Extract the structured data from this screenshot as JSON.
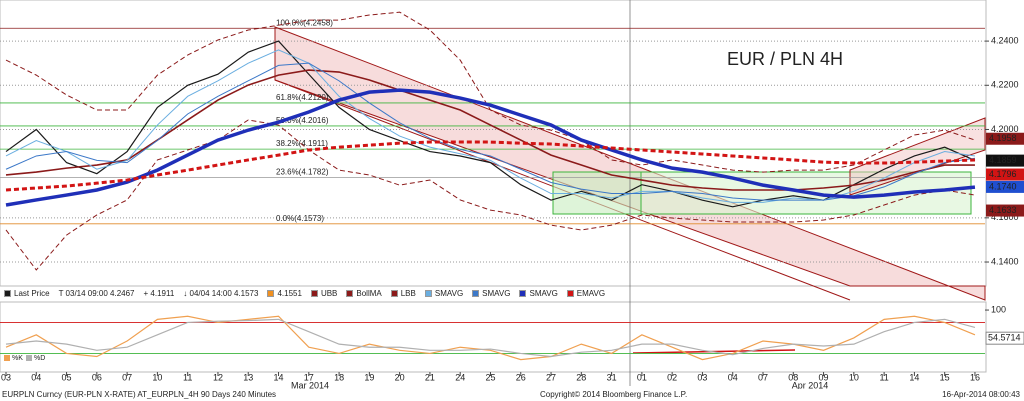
{
  "chart_data": {
    "type": "line",
    "title": "EUR / PLN 4H",
    "title_color": "#d62020",
    "categories": [
      "03",
      "04",
      "05",
      "06",
      "07",
      "10",
      "11",
      "12",
      "13",
      "14",
      "17",
      "18",
      "19",
      "20",
      "21",
      "24",
      "25",
      "26",
      "27",
      "28",
      "31",
      "01",
      "02",
      "03",
      "04",
      "07",
      "08",
      "09",
      "10",
      "11",
      "14",
      "15",
      "16"
    ],
    "periods": [
      "Mar 2014",
      "Apr 2014"
    ],
    "ylim": [
      4.1296,
      4.2586
    ],
    "yticks": [
      {
        "value": 4.14,
        "label": "4.1400"
      },
      {
        "value": 4.16,
        "label": "4.1600"
      },
      {
        "value": 4.2,
        "label": "4.2000"
      },
      {
        "value": 4.22,
        "label": "4.2200"
      },
      {
        "value": 4.24,
        "label": "4.2400"
      }
    ],
    "grid": true,
    "series": [
      {
        "name": "Last Price",
        "color": "#1a1a1a",
        "width": 1.2,
        "dash": false,
        "values": [
          4.19,
          4.2,
          4.185,
          4.18,
          4.19,
          4.21,
          4.22,
          4.225,
          4.235,
          4.24,
          4.225,
          4.21,
          4.2,
          4.195,
          4.19,
          4.188,
          4.185,
          4.175,
          4.168,
          4.172,
          4.168,
          4.175,
          4.172,
          4.168,
          4.165,
          4.168,
          4.17,
          4.168,
          4.175,
          4.182,
          4.188,
          4.192,
          4.186
        ]
      },
      {
        "name": "UBB",
        "color": "#8b1a1a",
        "width": 1,
        "dash": true,
        "values": [
          4.2314,
          4.2246,
          4.2156,
          4.2088,
          4.2088,
          4.2246,
          4.2337,
          4.2405,
          4.245,
          4.2472,
          4.2495,
          4.2495,
          4.2518,
          4.2531,
          4.245,
          4.2314,
          4.2088,
          4.202,
          4.1997,
          4.1952,
          4.1862,
          4.1839,
          4.1862,
          4.1839,
          4.1816,
          4.1807,
          4.1816,
          4.1816,
          4.1839,
          4.1907,
          4.1975,
          4.1997,
          4.1952
        ]
      },
      {
        "name": "BollMA",
        "color": "#8b1a1a",
        "width": 1.6,
        "dash": false,
        "values": [
          4.1794,
          4.1807,
          4.1825,
          4.1839,
          4.1862,
          4.1952,
          4.2043,
          4.2133,
          4.2201,
          4.2246,
          4.2269,
          4.226,
          4.2224,
          4.2178,
          4.2133,
          4.2088,
          4.202,
          4.1952,
          4.1884,
          4.1839,
          4.1794,
          4.1771,
          4.1748,
          4.1735,
          4.1726,
          4.1726,
          4.1726,
          4.1735,
          4.1748,
          4.1771,
          4.1807,
          4.1839,
          4.1839
        ]
      },
      {
        "name": "LBB",
        "color": "#8b1a1a",
        "width": 1,
        "dash": true,
        "values": [
          4.1545,
          4.1364,
          4.1522,
          4.1613,
          4.1681,
          4.1862,
          4.1907,
          4.1952,
          4.2043,
          4.202,
          4.1907,
          4.1816,
          4.1794,
          4.1748,
          4.1771,
          4.1681,
          4.1635,
          4.1613,
          4.1567,
          4.1545,
          4.1567,
          4.1613,
          4.1599,
          4.159,
          4.1581,
          4.1581,
          4.1581,
          4.159,
          4.1613,
          4.1658,
          4.1703,
          4.1726,
          4.1703
        ]
      },
      {
        "name": "SMAVG",
        "color": "#6aaee0",
        "width": 1,
        "dash": false,
        "values": [
          4.188,
          4.195,
          4.19,
          4.182,
          4.186,
          4.202,
          4.215,
          4.222,
          4.23,
          4.236,
          4.23,
          4.215,
          4.205,
          4.197,
          4.192,
          4.189,
          4.186,
          4.178,
          4.171,
          4.171,
          4.169,
          4.172,
          4.172,
          4.169,
          4.167,
          4.167,
          4.169,
          4.168,
          4.172,
          4.178,
          4.185,
          4.19,
          4.188
        ]
      },
      {
        "name": "SMAVG",
        "color": "#3c78c8",
        "width": 1,
        "dash": false,
        "values": [
          4.182,
          4.188,
          4.19,
          4.186,
          4.185,
          4.195,
          4.207,
          4.215,
          4.222,
          4.229,
          4.23,
          4.222,
          4.212,
          4.203,
          4.196,
          4.191,
          4.188,
          4.182,
          4.176,
          4.173,
          4.171,
          4.171,
          4.172,
          4.171,
          4.169,
          4.168,
          4.168,
          4.168,
          4.17,
          4.174,
          4.18,
          4.185,
          4.187
        ]
      },
      {
        "name": "SMAVG",
        "color": "#1f2fb8",
        "width": 3.5,
        "dash": false,
        "values": [
          4.1658,
          4.1681,
          4.1703,
          4.1726,
          4.1762,
          4.1816,
          4.1884,
          4.1952,
          4.1997,
          4.2033,
          4.2079,
          4.2133,
          4.2169,
          4.2178,
          4.2169,
          4.2142,
          4.211,
          4.2065,
          4.202,
          4.1952,
          4.1907,
          4.1862,
          4.1825,
          4.1807,
          4.178,
          4.1748,
          4.1726,
          4.1703,
          4.1694,
          4.1703,
          4.1717,
          4.1726,
          4.1739
        ]
      },
      {
        "name": "EMAVG",
        "color": "#d21414",
        "width": 3,
        "dash": true,
        "values": [
          4.1726,
          4.1735,
          4.1744,
          4.1757,
          4.1771,
          4.1794,
          4.1816,
          4.1839,
          4.1862,
          4.1884,
          4.1907,
          4.192,
          4.1929,
          4.1938,
          4.1943,
          4.1943,
          4.1943,
          4.1938,
          4.1934,
          4.1925,
          4.1916,
          4.1907,
          4.1898,
          4.1889,
          4.188,
          4.1871,
          4.1862,
          4.1852,
          4.1848,
          4.1848,
          4.1852,
          4.1857,
          4.1862
        ]
      }
    ],
    "legend_notes": [
      "T 03/14 09:00 4.2467",
      "+ 4.1911",
      "↓ 04/04 14:00 4.1573",
      "4.1551"
    ],
    "fib_levels": [
      {
        "label": "100.0%(4.2458)",
        "value": 4.2458,
        "color": "#8b1a1a"
      },
      {
        "label": "61.8%(4.2120)",
        "value": 4.212,
        "color": "#3cb43c"
      },
      {
        "label": "50.0%(4.2016)",
        "value": 4.2016,
        "color": "#3cb43c"
      },
      {
        "label": "38.2%(4.1911)",
        "value": 4.1911,
        "color": "#3cb43c"
      },
      {
        "label": "23.6%(4.1782)",
        "value": 4.1782,
        "color": "#999999"
      },
      {
        "label": "0.0%(4.1573)",
        "value": 4.1573,
        "color": "#e08a2a"
      }
    ],
    "price_tags": [
      {
        "value": 4.1958,
        "label": "4.1958",
        "color": "#8b1a1a"
      },
      {
        "value": 4.1859,
        "label": "4.1859",
        "color": "#111111"
      },
      {
        "value": 4.1796,
        "label": "4.1796",
        "color": "#d21414"
      },
      {
        "value": 4.174,
        "label": "4.1740",
        "color": "#1f4fd0"
      },
      {
        "value": 4.1633,
        "label": "4.1633",
        "color": "#8b1a1a"
      }
    ],
    "oscillator": {
      "ylim": [
        0,
        113
      ],
      "yticks": [
        100
      ],
      "levels": [
        {
          "value": 80,
          "color": "#d21414"
        },
        {
          "value": 30,
          "color": "#3cb43c"
        }
      ],
      "last_value": 54.5714,
      "series": [
        {
          "name": "%K",
          "color": "#f0a050",
          "values": [
            40,
            60,
            30,
            25,
            50,
            85,
            90,
            80,
            85,
            90,
            40,
            30,
            45,
            35,
            30,
            40,
            35,
            20,
            25,
            45,
            30,
            60,
            40,
            20,
            30,
            50,
            45,
            35,
            55,
            85,
            90,
            80,
            60
          ]
        },
        {
          "name": "%D",
          "color": "#b0b0b0",
          "values": [
            45,
            50,
            45,
            35,
            40,
            60,
            80,
            82,
            83,
            85,
            65,
            45,
            40,
            40,
            35,
            35,
            37,
            30,
            25,
            32,
            35,
            45,
            45,
            35,
            28,
            38,
            45,
            42,
            45,
            65,
            80,
            85,
            72
          ]
        }
      ]
    },
    "footer": {
      "left": "EURPLN Curncy (EUR-PLN X-RATE) AT_EURPLN_4H 90 Days 240 Minutes",
      "center": "Copyright© 2014 Bloomberg Finance L.P.",
      "right": "16-Apr-2014 08:00:43"
    }
  }
}
